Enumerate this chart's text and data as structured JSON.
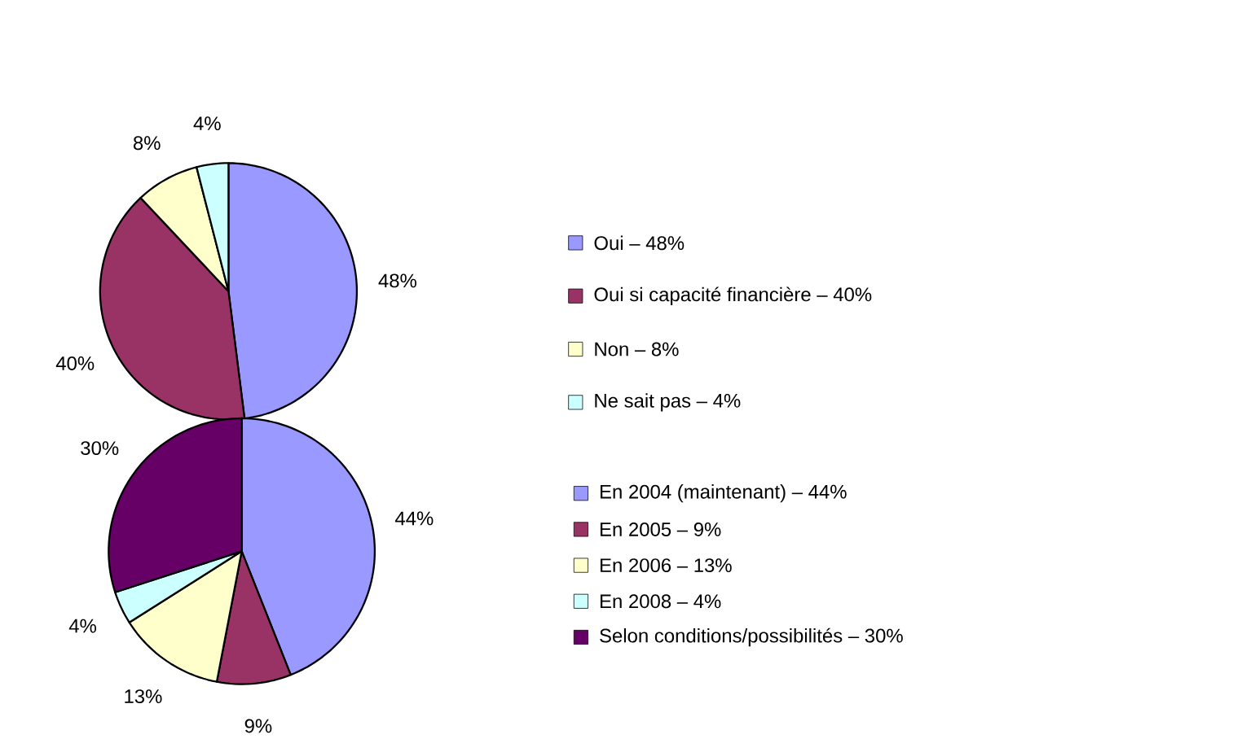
{
  "chart_data": [
    {
      "type": "pie",
      "categories": [
        "Oui – 48%",
        "Oui si capacité financière – 40%",
        "Non – 8%",
        "Ne sait pas – 4%"
      ],
      "values": [
        48,
        40,
        8,
        4
      ],
      "colors": [
        "#9999ff",
        "#993366",
        "#ffffcc",
        "#ccffff"
      ],
      "value_labels": [
        "48%",
        "40%",
        "8%",
        "4%"
      ],
      "legend": "right"
    },
    {
      "type": "pie",
      "categories": [
        "En 2004 (maintenant) – 44%",
        "En 2005 – 9%",
        "En 2006 – 13%",
        "En 2008 – 4%",
        "Selon conditions/possibilités – 30%"
      ],
      "values": [
        44,
        9,
        13,
        4,
        30
      ],
      "colors": [
        "#9999ff",
        "#993366",
        "#ffffcc",
        "#ccffff",
        "#660066"
      ],
      "value_labels": [
        "44%",
        "9%",
        "13%",
        "4%",
        "30%"
      ],
      "legend": "right"
    }
  ]
}
